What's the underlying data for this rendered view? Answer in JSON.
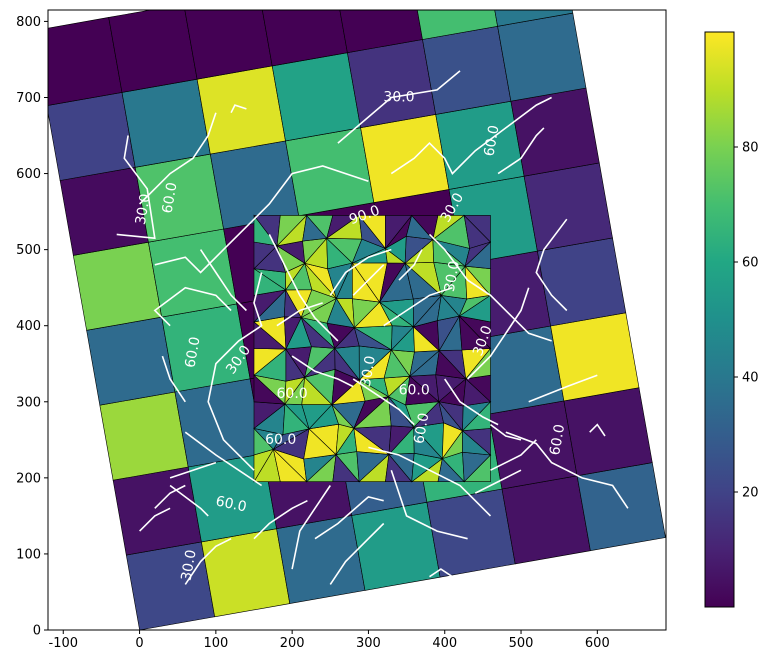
{
  "chart_data": {
    "type": "heatmap",
    "title": "",
    "xlabel": "",
    "ylabel": "",
    "xlim": [
      -120,
      690
    ],
    "ylim": [
      0,
      815
    ],
    "x_ticks": [
      -100,
      0,
      100,
      200,
      300,
      400,
      500,
      600
    ],
    "y_ticks": [
      0,
      100,
      200,
      300,
      400,
      500,
      600,
      700,
      800
    ],
    "colormap": "viridis",
    "colorbar": {
      "vmin": 0,
      "vmax": 100,
      "ticks": [
        20,
        40,
        60,
        80
      ]
    },
    "grid_rotation_deg": 10,
    "grid_origin": [
      0,
      0
    ],
    "cell_size": 100,
    "grid_values": [
      [
        22,
        92,
        35,
        55,
        22,
        5,
        32
      ],
      [
        5,
        55,
        5,
        30,
        65,
        5,
        5
      ],
      [
        85,
        35,
        0,
        0,
        0,
        35,
        98
      ],
      [
        35,
        65,
        0,
        0,
        0,
        8,
        20
      ],
      [
        80,
        70,
        0,
        0,
        0,
        55,
        12
      ],
      [
        3,
        72,
        35,
        70,
        98,
        55,
        5
      ],
      [
        20,
        40,
        95,
        58,
        15,
        25,
        35
      ],
      [
        0,
        0,
        0,
        0,
        0,
        70,
        40
      ]
    ],
    "inner_mesh_region": {
      "x_range": [
        150,
        460
      ],
      "y_range": [
        195,
        545
      ]
    },
    "contour_levels": [
      30.0,
      60.0,
      90.0
    ],
    "contour_labels": [
      "30.0",
      "60.0",
      "90.0"
    ],
    "contour_color": "#ffffff",
    "label_positions": [
      {
        "text": "30.0",
        "x": 340,
        "y": 700,
        "rot": 0
      },
      {
        "text": "60.0",
        "x": 462,
        "y": 643,
        "rot": -80
      },
      {
        "text": "30.0",
        "x": 5,
        "y": 553,
        "rot": -80
      },
      {
        "text": "60.0",
        "x": 40,
        "y": 568,
        "rot": -80
      },
      {
        "text": "60.0",
        "x": 70,
        "y": 365,
        "rot": -80
      },
      {
        "text": "30.0",
        "x": 130,
        "y": 355,
        "rot": -55
      },
      {
        "text": "60.0",
        "x": 120,
        "y": 165,
        "rot": 12
      },
      {
        "text": "30.0",
        "x": 65,
        "y": 85,
        "rot": -80
      },
      {
        "text": "60.0",
        "x": 548,
        "y": 250,
        "rot": -80
      },
      {
        "text": "30.0",
        "x": 450,
        "y": 380,
        "rot": -70
      },
      {
        "text": "30.0",
        "x": 410,
        "y": 555,
        "rot": -60
      },
      {
        "text": "90.0",
        "x": 295,
        "y": 545,
        "rot": -20
      },
      {
        "text": "30.0",
        "x": 410,
        "y": 465,
        "rot": -80
      },
      {
        "text": "60.0",
        "x": 200,
        "y": 310,
        "rot": 0
      },
      {
        "text": "60.0",
        "x": 185,
        "y": 250,
        "rot": 0
      },
      {
        "text": "30.0",
        "x": 300,
        "y": 340,
        "rot": -80
      },
      {
        "text": "60.0",
        "x": 360,
        "y": 315,
        "rot": 0
      },
      {
        "text": "60.0",
        "x": 370,
        "y": 265,
        "rot": -80
      }
    ]
  }
}
